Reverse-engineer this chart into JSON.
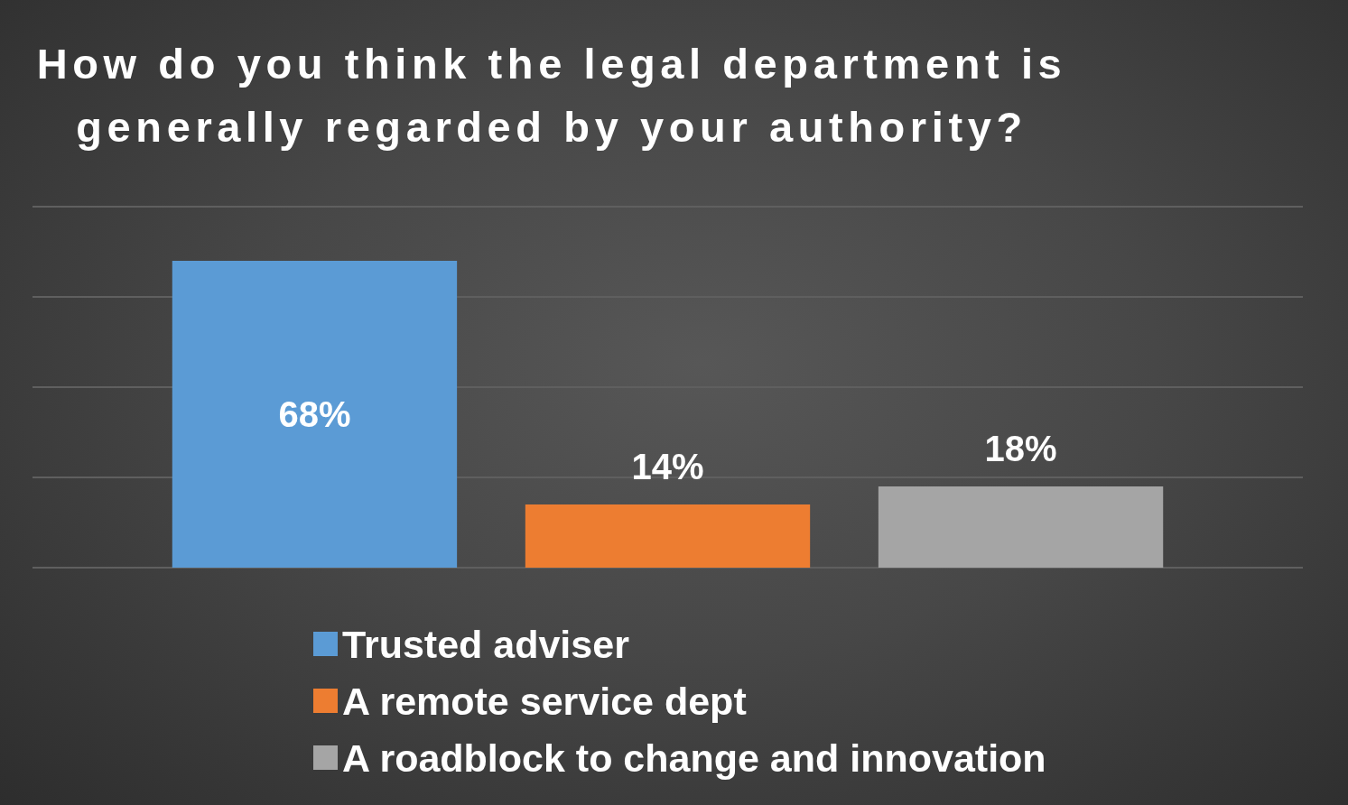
{
  "chart_data": {
    "type": "bar",
    "title": "How do you think the legal department is generally regarded by your authority?",
    "categories": [
      null
    ],
    "series": [
      {
        "name": "Trusted adviser",
        "color": "#5b9bd5",
        "values": [
          68
        ],
        "value_labels": [
          "68%"
        ]
      },
      {
        "name": "A remote service dept",
        "color": "#ed7d31",
        "values": [
          14
        ],
        "value_labels": [
          "14%"
        ]
      },
      {
        "name": "A roadblock to change and innovation",
        "color": "#a5a5a5",
        "values": [
          18
        ],
        "value_labels": [
          "18%"
        ]
      }
    ],
    "ylim": [
      0,
      80
    ],
    "yticks": [
      {
        "value": 0,
        "label": null
      },
      {
        "value": 20,
        "label": null
      },
      {
        "value": 40,
        "label": null
      },
      {
        "value": 60,
        "label": null
      },
      {
        "value": 80,
        "label": null
      }
    ],
    "grid": "y",
    "legend": "bottom"
  }
}
